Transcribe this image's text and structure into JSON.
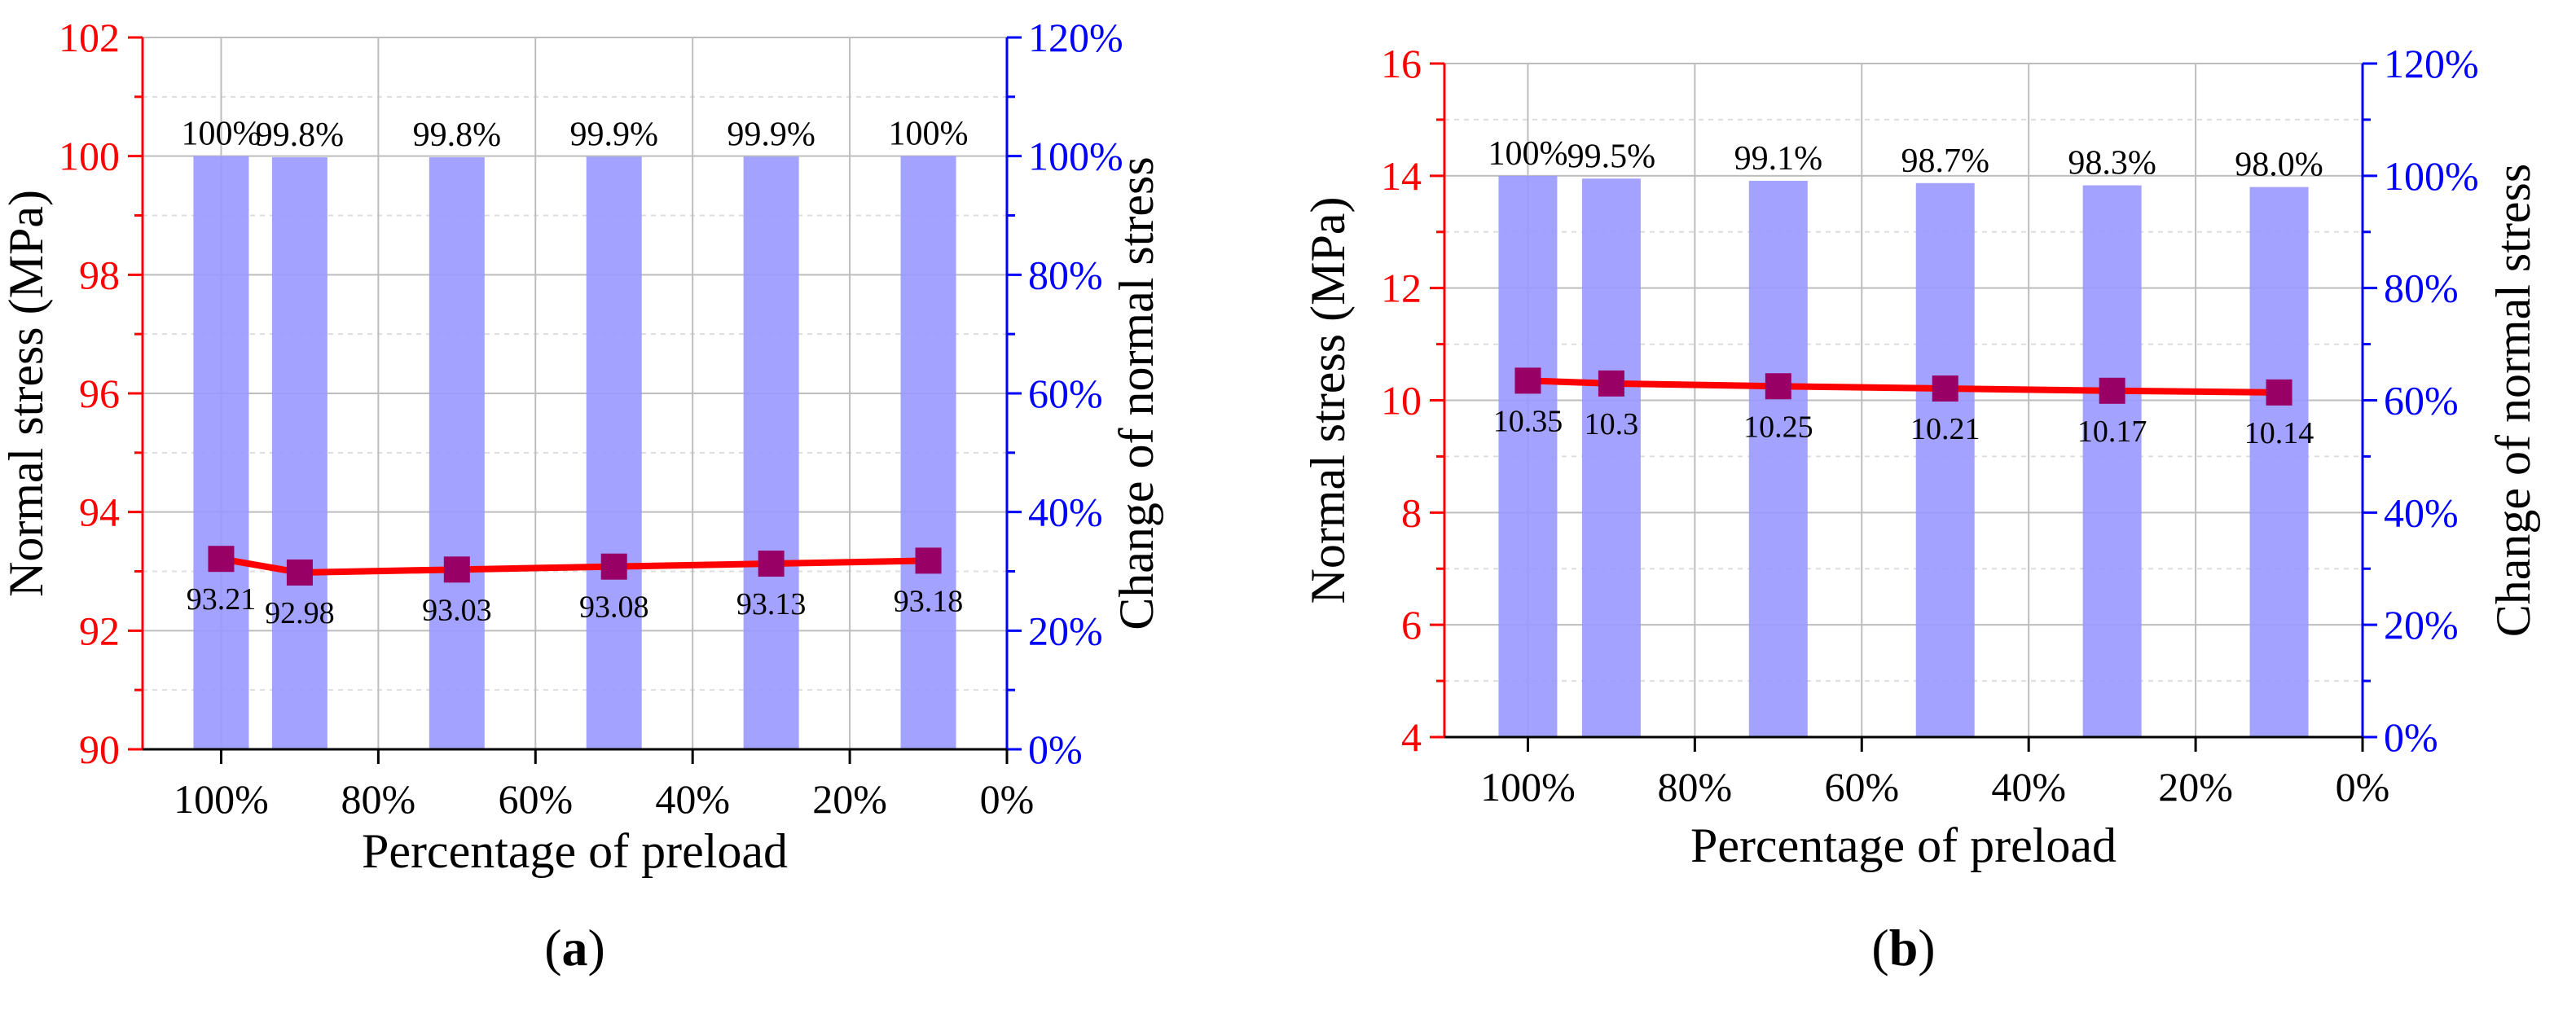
{
  "colors": {
    "left_axis": "#ff0000",
    "right_axis": "#0000ff",
    "bar_fill": "#9999ff",
    "line": "#ff0000",
    "marker": "#990066",
    "grid": "#bdbdbd",
    "grid_minor": "#dddddd"
  },
  "chart_data": [
    {
      "type": "bar+line",
      "panel_label_open": "(",
      "panel_label_letter": "a",
      "panel_label_close": ")",
      "xlabel": "Percentage of preload",
      "ylabel_left": "Normal stress (MPa)",
      "ylabel_right": "Change of normal stress",
      "x_ticks": [
        "100%",
        "80%",
        "60%",
        "40%",
        "20%",
        "0%"
      ],
      "x_tick_values": [
        100,
        80,
        60,
        40,
        20,
        0
      ],
      "xlim": [
        110,
        0
      ],
      "ylim_left": [
        90,
        102
      ],
      "y_left_ticks": [
        "90",
        "92",
        "94",
        "96",
        "98",
        "100",
        "102"
      ],
      "ylim_right": [
        0,
        120
      ],
      "y_right_ticks": [
        "0%",
        "20%",
        "40%",
        "60%",
        "80%",
        "100%",
        "120%"
      ],
      "x": [
        100,
        90,
        70,
        50,
        30,
        10
      ],
      "bars": {
        "name": "Change of normal stress",
        "values": [
          100,
          99.8,
          99.8,
          99.9,
          99.9,
          100
        ],
        "labels": [
          "100%",
          "99.8%",
          "99.8%",
          "99.9%",
          "99.9%",
          "100%"
        ]
      },
      "line": {
        "name": "Normal stress",
        "values": [
          93.21,
          92.98,
          93.03,
          93.08,
          93.13,
          93.18
        ],
        "labels": [
          "93.21",
          "92.98",
          "93.03",
          "93.08",
          "93.13",
          "93.18"
        ]
      },
      "grid": true
    },
    {
      "type": "bar+line",
      "panel_label_open": "(",
      "panel_label_letter": "b",
      "panel_label_close": ")",
      "xlabel": "Percentage of preload",
      "ylabel_left": "Normal stress (MPa)",
      "ylabel_right": "Change of normal stress",
      "x_ticks": [
        "100%",
        "80%",
        "60%",
        "40%",
        "20%",
        "0%"
      ],
      "x_tick_values": [
        100,
        80,
        60,
        40,
        20,
        0
      ],
      "xlim": [
        110,
        0
      ],
      "ylim_left": [
        4,
        16
      ],
      "y_left_ticks": [
        "4",
        "6",
        "8",
        "10",
        "12",
        "14",
        "16"
      ],
      "ylim_right": [
        0,
        120
      ],
      "y_right_ticks": [
        "0%",
        "20%",
        "40%",
        "60%",
        "80%",
        "100%",
        "120%"
      ],
      "x": [
        100,
        90,
        70,
        50,
        30,
        10
      ],
      "bars": {
        "name": "Change of normal stress",
        "values": [
          100,
          99.5,
          99.1,
          98.7,
          98.3,
          98.0
        ],
        "labels": [
          "100%",
          "99.5%",
          "99.1%",
          "98.7%",
          "98.3%",
          "98.0%"
        ]
      },
      "line": {
        "name": "Normal stress",
        "values": [
          10.35,
          10.3,
          10.25,
          10.21,
          10.17,
          10.14
        ],
        "labels": [
          "10.35",
          "10.3",
          "10.25",
          "10.21",
          "10.17",
          "10.14"
        ]
      },
      "grid": true
    }
  ]
}
